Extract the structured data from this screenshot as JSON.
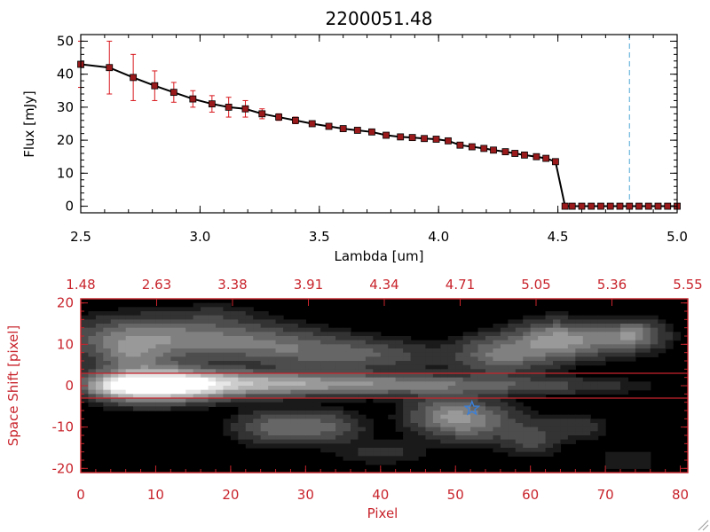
{
  "colors": {
    "axis_black": "#000000",
    "axis_red": "#c8242c",
    "errorbar": "#d8161c",
    "marker": "#9a1a1c",
    "line": "#000000",
    "vline": "#4fa6d6",
    "star": "#3a7fd8",
    "image_bg": "#000000"
  },
  "chart_data": [
    {
      "type": "line",
      "title": "2200051.48",
      "xlabel": "Lambda [um]",
      "ylabel": "Flux [mJy]",
      "xlim": [
        2.5,
        5.0
      ],
      "ylim": [
        -2,
        52
      ],
      "xticks": [
        "2.5",
        "3.0",
        "3.5",
        "4.0",
        "4.5",
        "5.0"
      ],
      "yticks": [
        "0",
        "10",
        "20",
        "30",
        "40",
        "50"
      ],
      "vline_x": 4.8,
      "series": [
        {
          "x": [
            2.5,
            2.62,
            2.72,
            2.81,
            2.89,
            2.97,
            3.05,
            3.12,
            3.19,
            3.26,
            3.33,
            3.4,
            3.47,
            3.54,
            3.6,
            3.66,
            3.72,
            3.78,
            3.84,
            3.89,
            3.94,
            3.99,
            4.04,
            4.09,
            4.14,
            4.19,
            4.23,
            4.28,
            4.32,
            4.36,
            4.41,
            4.45,
            4.49,
            4.53,
            4.56,
            4.6,
            4.64,
            4.68,
            4.72,
            4.76,
            4.8,
            4.84,
            4.88,
            4.92,
            4.96,
            5.0
          ],
          "y": [
            43,
            42,
            39,
            36.5,
            34.5,
            32.5,
            31,
            30,
            29.5,
            28,
            27,
            26,
            25,
            24.2,
            23.5,
            23,
            22.5,
            21.5,
            21,
            20.8,
            20.5,
            20.3,
            19.8,
            18.5,
            18,
            17.5,
            17,
            16.5,
            16,
            15.5,
            15,
            14.5,
            13.5,
            0,
            0,
            0,
            0,
            0,
            0,
            0,
            0,
            0,
            0,
            0,
            0,
            0
          ],
          "yerr": [
            7,
            8,
            7,
            4.5,
            3,
            2.5,
            2.5,
            3,
            2.5,
            1.5,
            1,
            1,
            0.8,
            0.6,
            0.5,
            0.5,
            0.5,
            0.5,
            0.5,
            0.5,
            0.5,
            0.5,
            0.5,
            0.5,
            0.5,
            0.5,
            0.5,
            0.5,
            0.5,
            0.5,
            0.5,
            0.5,
            0.5,
            0,
            0,
            0,
            0,
            0,
            0,
            0,
            0,
            0,
            0,
            0,
            0,
            0
          ]
        }
      ]
    },
    {
      "type": "heatmap",
      "xlabel": "Pixel",
      "ylabel": "Space Shift [pixel]",
      "xlim": [
        0,
        81
      ],
      "ylim": [
        -21,
        21
      ],
      "xticks": [
        "0",
        "10",
        "20",
        "30",
        "40",
        "50",
        "60",
        "70",
        "80"
      ],
      "yticks": [
        "-20",
        "-10",
        "0",
        "10",
        "20"
      ],
      "top_ticks": [
        "1.48",
        "2.63",
        "3.38",
        "3.91",
        "4.34",
        "4.71",
        "5.05",
        "5.36",
        "5.55"
      ],
      "hlines_y": [
        3,
        -3
      ],
      "star": {
        "x": 52.2,
        "y": -5.5
      },
      "blobs": [
        {
          "x": 5,
          "y": 0,
          "sx": 3,
          "sy": 1.8,
          "v": 0.45
        },
        {
          "x": 9,
          "y": 0.3,
          "sx": 4.5,
          "sy": 2.6,
          "v": 1.0
        },
        {
          "x": 15,
          "y": 0.2,
          "sx": 4,
          "sy": 2.2,
          "v": 0.55
        },
        {
          "x": 22,
          "y": 0.5,
          "sx": 6,
          "sy": 2,
          "v": 0.42
        },
        {
          "x": 32,
          "y": 0.5,
          "sx": 8,
          "sy": 1.8,
          "v": 0.34
        },
        {
          "x": 44,
          "y": 0.2,
          "sx": 8,
          "sy": 1.6,
          "v": 0.25
        },
        {
          "x": 56,
          "y": 0,
          "sx": 7,
          "sy": 1.5,
          "v": 0.16
        },
        {
          "x": 68,
          "y": 0,
          "sx": 6,
          "sy": 1.2,
          "v": 0.1
        },
        {
          "x": 6,
          "y": 11,
          "sx": 5,
          "sy": 3.5,
          "v": 0.34
        },
        {
          "x": 15,
          "y": 11.5,
          "sx": 6,
          "sy": 3,
          "v": 0.3
        },
        {
          "x": 25,
          "y": 10,
          "sx": 6,
          "sy": 3,
          "v": 0.24
        },
        {
          "x": 33,
          "y": 8,
          "sx": 6,
          "sy": 2.5,
          "v": 0.2
        },
        {
          "x": 41,
          "y": 7,
          "sx": 5,
          "sy": 2.5,
          "v": 0.14
        },
        {
          "x": 56,
          "y": 7.5,
          "sx": 4,
          "sy": 3,
          "v": 0.36
        },
        {
          "x": 63,
          "y": 11,
          "sx": 3.5,
          "sy": 3,
          "v": 0.44
        },
        {
          "x": 70,
          "y": 11,
          "sx": 4,
          "sy": 2.5,
          "v": 0.28
        },
        {
          "x": 74,
          "y": 12.5,
          "sx": 2.5,
          "sy": 2.2,
          "v": 0.3
        },
        {
          "x": 7,
          "y": 7,
          "sx": 3,
          "sy": 2,
          "v": 0.2
        },
        {
          "x": 26,
          "y": -10,
          "sx": 3.5,
          "sy": 2.6,
          "v": 0.3
        },
        {
          "x": 33,
          "y": -10,
          "sx": 3,
          "sy": 2.5,
          "v": 0.24
        },
        {
          "x": 49,
          "y": -7,
          "sx": 3.5,
          "sy": 3,
          "v": 0.34
        },
        {
          "x": 53,
          "y": -9,
          "sx": 4,
          "sy": 3,
          "v": 0.26
        },
        {
          "x": 60,
          "y": -13,
          "sx": 2.5,
          "sy": 2.5,
          "v": 0.18
        },
        {
          "x": 66,
          "y": -10,
          "sx": 3,
          "sy": 2,
          "v": 0.12
        },
        {
          "x": 40,
          "y": -16,
          "sx": 4,
          "sy": 2,
          "v": 0.1
        },
        {
          "x": 73,
          "y": -18,
          "sx": 3,
          "sy": 2,
          "v": 0.08
        },
        {
          "x": 18,
          "y": 17,
          "sx": 4,
          "sy": 2,
          "v": 0.08
        }
      ]
    }
  ]
}
